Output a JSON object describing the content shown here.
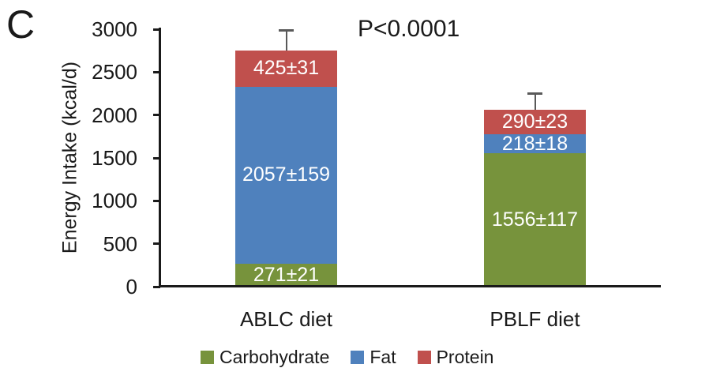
{
  "panel_label": "C",
  "annotation": "P<0.0001",
  "y_axis": {
    "title": "Energy Intake (kcal/d)",
    "min": 0,
    "max": 3000,
    "step": 500,
    "tick_labels": [
      "0",
      "500",
      "1000",
      "1500",
      "2000",
      "2500",
      "3000"
    ]
  },
  "colors": {
    "carbohydrate": "#77933C",
    "fat": "#4F81BD",
    "protein": "#C0504D",
    "error_bar": "#595959",
    "axis": "#1a1a1a",
    "segment_text": "#ffffff"
  },
  "chart_data": {
    "type": "bar",
    "stacked": true,
    "title": "",
    "xlabel": "",
    "ylabel": "Energy Intake (kcal/d)",
    "ylim": [
      0,
      3000
    ],
    "grid": false,
    "legend_position": "bottom",
    "annotation": "P<0.0001",
    "categories": [
      "ABLC diet",
      "PBLF diet"
    ],
    "series": [
      {
        "name": "Carbohydrate",
        "color": "#77933C",
        "values": [
          271,
          1556
        ],
        "labels": [
          "271±21",
          "1556±117"
        ]
      },
      {
        "name": "Fat",
        "color": "#4F81BD",
        "values": [
          2057,
          218
        ],
        "labels": [
          "2057±159",
          "218±18"
        ]
      },
      {
        "name": "Protein",
        "color": "#C0504D",
        "values": [
          425,
          290
        ],
        "labels": [
          "425±31",
          "290±23"
        ]
      }
    ],
    "totals": [
      2753,
      2064
    ],
    "total_error_bars_estimated": [
      235,
      190
    ]
  },
  "legend": {
    "items": [
      {
        "label": "Carbohydrate",
        "color": "#77933C"
      },
      {
        "label": "Fat",
        "color": "#4F81BD"
      },
      {
        "label": "Protein",
        "color": "#C0504D"
      }
    ]
  }
}
